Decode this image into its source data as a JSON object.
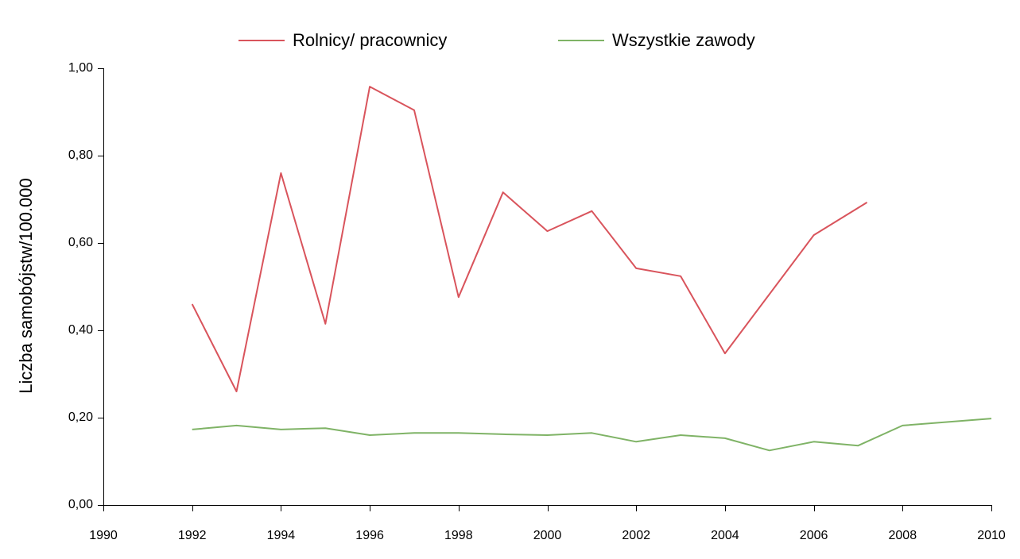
{
  "legend": [
    {
      "label": "Rolnicy/ pracownicy",
      "color": "#d9545c"
    },
    {
      "label": "Wszystkie zawody",
      "color": "#7fb366"
    }
  ],
  "axes": {
    "ylabel": "Liczba samobójstw/100.000",
    "yticks": [
      "0,00",
      "0,20",
      "0,40",
      "0,60",
      "0,80",
      "1,00"
    ],
    "xticks": [
      "1990",
      "1992",
      "1994",
      "1996",
      "1998",
      "2000",
      "2002",
      "2004",
      "2006",
      "2008",
      "2010"
    ]
  },
  "chart_data": {
    "type": "line",
    "title": "",
    "xlabel": "",
    "ylabel": "Liczba samobójstw/100.000",
    "xlim": [
      1990,
      2010
    ],
    "ylim": [
      0,
      1.0
    ],
    "grid": false,
    "legend_position": "top",
    "series": [
      {
        "name": "Rolnicy/ pracownicy",
        "color": "#d9545c",
        "x": [
          1992,
          1993,
          1994,
          1995,
          1996,
          1997,
          1998,
          1999,
          2000,
          2001,
          2002,
          2003,
          2004,
          2006,
          2007.2
        ],
        "values": [
          0.46,
          0.26,
          0.76,
          0.415,
          0.958,
          0.904,
          0.476,
          0.716,
          0.627,
          0.673,
          0.542,
          0.524,
          0.347,
          0.618,
          0.693
        ]
      },
      {
        "name": "Wszystkie zawody",
        "color": "#7fb366",
        "x": [
          1992,
          1993,
          1994,
          1995,
          1996,
          1997,
          1998,
          1999,
          2000,
          2001,
          2002,
          2003,
          2004,
          2005,
          2006,
          2007,
          2008,
          2010
        ],
        "values": [
          0.173,
          0.182,
          0.173,
          0.176,
          0.16,
          0.165,
          0.165,
          0.162,
          0.16,
          0.165,
          0.145,
          0.16,
          0.153,
          0.125,
          0.145,
          0.136,
          0.182,
          0.198
        ]
      }
    ]
  }
}
